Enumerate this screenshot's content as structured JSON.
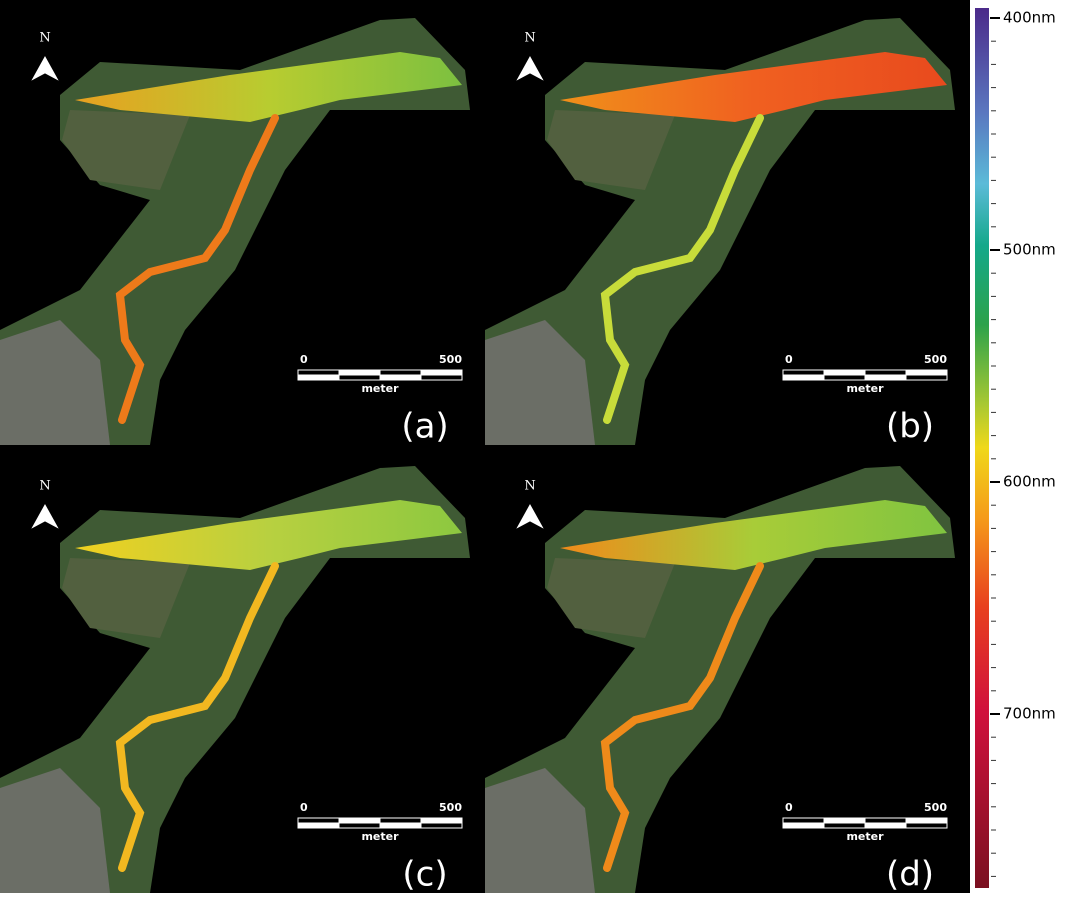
{
  "panels": [
    {
      "label": "(a)",
      "north": "N",
      "scale": {
        "start": "0",
        "end": "500",
        "unit": "meter"
      }
    },
    {
      "label": "(b)",
      "north": "N",
      "scale": {
        "start": "0",
        "end": "500",
        "unit": "meter"
      }
    },
    {
      "label": "(c)",
      "north": "N",
      "scale": {
        "start": "0",
        "end": "500",
        "unit": "meter"
      }
    },
    {
      "label": "(d)",
      "north": "N",
      "scale": {
        "start": "0",
        "end": "500",
        "unit": "meter"
      }
    }
  ],
  "colorbar": {
    "labels": [
      "400nm",
      "500nm",
      "600nm",
      "700nm"
    ]
  }
}
